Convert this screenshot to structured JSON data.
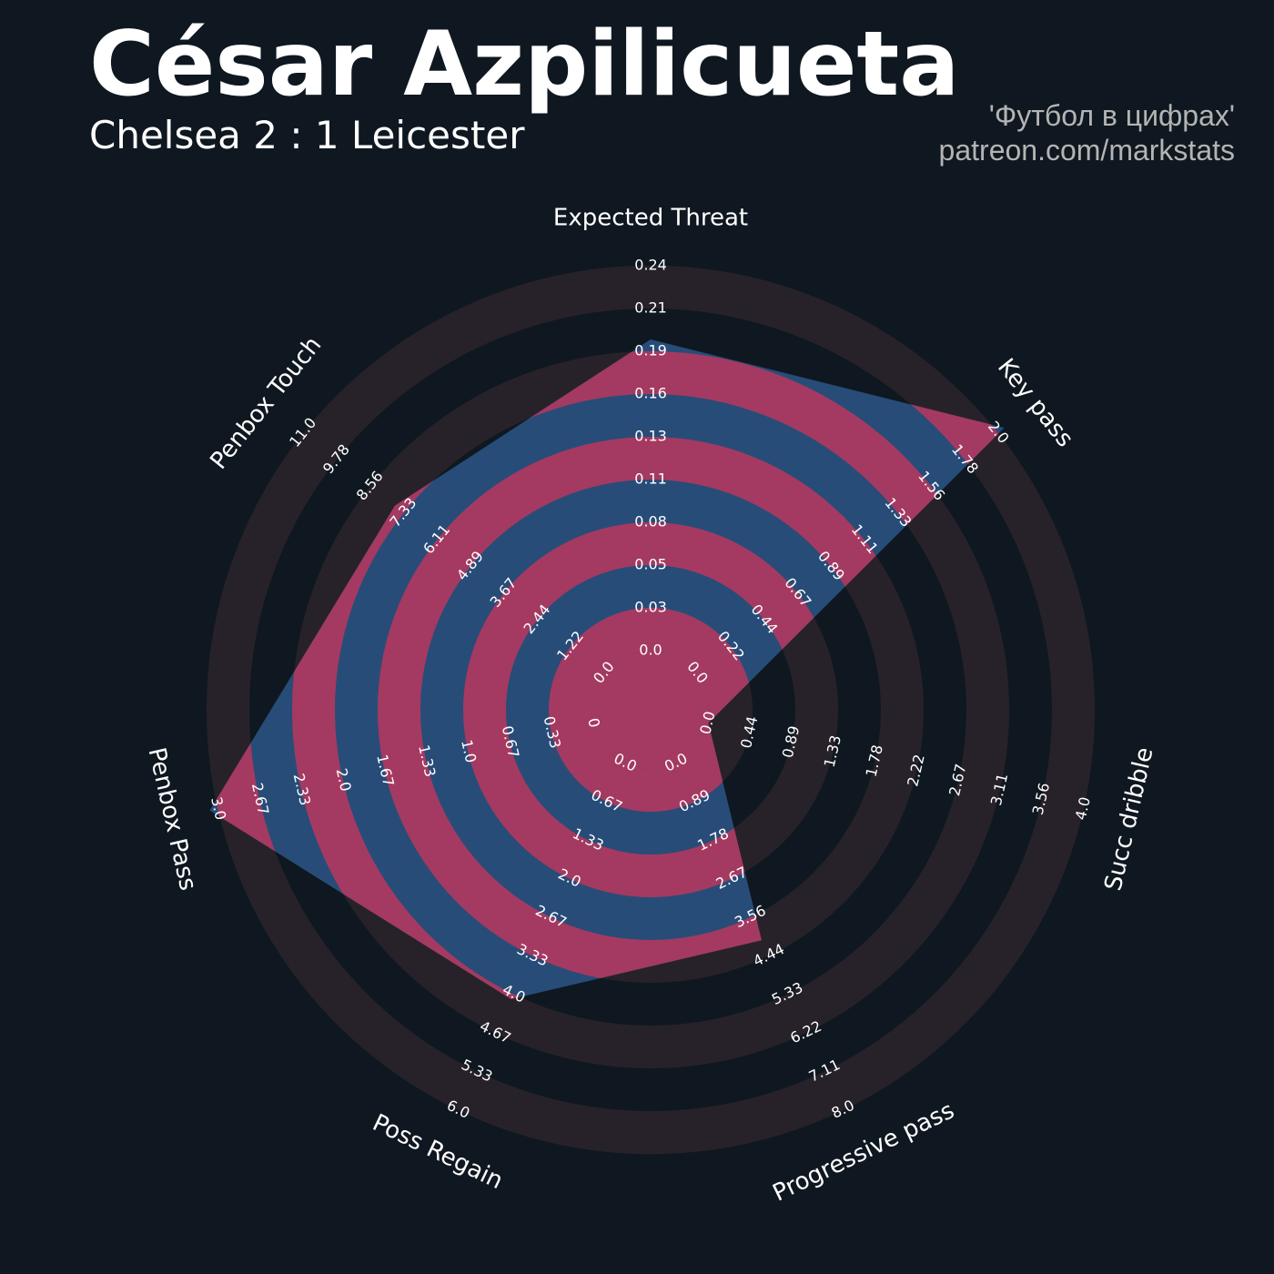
{
  "header": {
    "title": "César Azpilicueta",
    "subtitle": "Chelsea 2 : 1 Leicester",
    "credit_line1": "'Футбол в цифрах'",
    "credit_line2": "patreon.com/markstats"
  },
  "colors": {
    "background": "#0f1820",
    "ring_dark": "#272229",
    "ring_fill_alt": "#a43a61",
    "polygon_fill": "#284c78",
    "text": "#ffffff",
    "credit_text": "#b4b4b4"
  },
  "chart_data": {
    "type": "radar",
    "title": "César Azpilicueta",
    "subtitle": "Chelsea 2 : 1 Leicester",
    "grid": true,
    "legend": "none",
    "rings": 10,
    "parameters": [
      {
        "name": "Expected Threat",
        "value": 0.19,
        "range": [
          0.0,
          0.24
        ],
        "ticks": [
          "0.0",
          "0.03",
          "0.05",
          "0.08",
          "0.11",
          "0.13",
          "0.16",
          "0.19",
          "0.21",
          "0.24"
        ]
      },
      {
        "name": "Key pass",
        "value": 2.0,
        "range": [
          0.0,
          2.0
        ],
        "ticks": [
          "0.0",
          "0.22",
          "0.44",
          "0.67",
          "0.89",
          "1.11",
          "1.33",
          "1.56",
          "1.78",
          "2.0"
        ]
      },
      {
        "name": "Succ dribble",
        "value": 0.0,
        "range": [
          0.0,
          4.0
        ],
        "ticks": [
          "0.0",
          "0.44",
          "0.89",
          "1.33",
          "1.78",
          "2.22",
          "2.67",
          "3.11",
          "3.56",
          "4.0"
        ]
      },
      {
        "name": "Progressive pass",
        "value": 4.0,
        "range": [
          0.0,
          8.0
        ],
        "ticks": [
          "0.0",
          "0.89",
          "1.78",
          "2.67",
          "3.56",
          "4.44",
          "5.33",
          "6.22",
          "7.11",
          "8.0"
        ]
      },
      {
        "name": "Poss Regain",
        "value": 4.0,
        "range": [
          0.0,
          6.0
        ],
        "ticks": [
          "0.0",
          "0.67",
          "1.33",
          "2.0",
          "2.67",
          "3.33",
          "4.0",
          "4.67",
          "5.33",
          "6.0"
        ]
      },
      {
        "name": "Penbox Pass",
        "value": 3.0,
        "range": [
          0.0,
          3.0
        ],
        "ticks": [
          "0",
          "0.33",
          "0.67",
          "1.0",
          "1.33",
          "1.67",
          "2.0",
          "2.33",
          "2.67",
          "3.0"
        ]
      },
      {
        "name": "Penbox Touch",
        "value": 7.5,
        "range": [
          0.0,
          11.0
        ],
        "ticks": [
          "0.0",
          "1.22",
          "2.44",
          "3.67",
          "4.89",
          "6.11",
          "7.33",
          "8.56",
          "9.78",
          "11.0"
        ]
      }
    ]
  }
}
